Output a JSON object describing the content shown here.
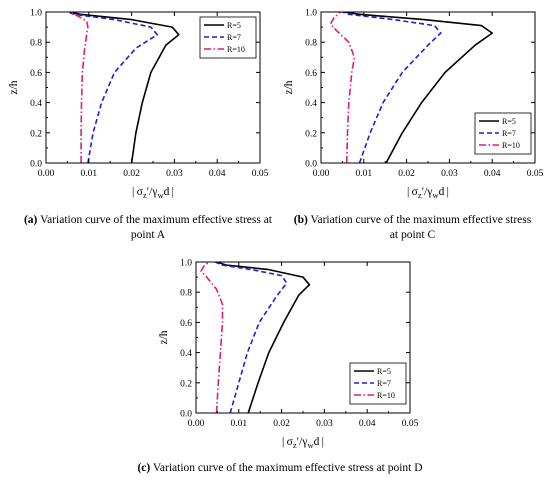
{
  "chart_data": [
    {
      "panel_tag": "(a)",
      "caption": "Variation curve of the maximum effective stress at point A",
      "type": "line",
      "ylabel": "z/h",
      "xlim": [
        0,
        0.05
      ],
      "ylim": [
        0,
        1.0
      ],
      "xticks": [
        "0.00",
        "0.01",
        "0.02",
        "0.03",
        "0.04",
        "0.05"
      ],
      "yticks": [
        "0.0",
        "0.2",
        "0.4",
        "0.6",
        "0.8",
        "1.0"
      ],
      "legend_position": "top-right",
      "series": [
        {
          "name": "R=5",
          "color": "#000000",
          "dash": "solid",
          "points": [
            [
              0.02,
              0.0
            ],
            [
              0.021,
              0.2
            ],
            [
              0.0225,
              0.4
            ],
            [
              0.0245,
              0.6
            ],
            [
              0.028,
              0.78
            ],
            [
              0.031,
              0.85
            ],
            [
              0.0295,
              0.9
            ],
            [
              0.02,
              0.95
            ],
            [
              0.008,
              0.985
            ],
            [
              0.0055,
              1.0
            ]
          ]
        },
        {
          "name": "R=7",
          "color": "#1f1fd6",
          "dash": "dashed",
          "points": [
            [
              0.0098,
              0.0
            ],
            [
              0.011,
              0.2
            ],
            [
              0.013,
              0.4
            ],
            [
              0.016,
              0.6
            ],
            [
              0.021,
              0.76
            ],
            [
              0.026,
              0.85
            ],
            [
              0.0245,
              0.9
            ],
            [
              0.016,
              0.95
            ],
            [
              0.0065,
              0.985
            ],
            [
              0.005,
              1.0
            ]
          ]
        },
        {
          "name": "R=10",
          "color": "#e01c7c",
          "dash": "dashdot",
          "points": [
            [
              0.0082,
              0.0
            ],
            [
              0.0082,
              0.2
            ],
            [
              0.0083,
              0.4
            ],
            [
              0.0085,
              0.6
            ],
            [
              0.009,
              0.75
            ],
            [
              0.0095,
              0.85
            ],
            [
              0.0098,
              0.9
            ],
            [
              0.0095,
              0.94
            ],
            [
              0.007,
              0.98
            ],
            [
              0.0055,
              1.0
            ]
          ]
        }
      ]
    },
    {
      "panel_tag": "(b)",
      "caption": "Variation curve of the maximum effective stress at point C",
      "type": "line",
      "ylabel": "z/h",
      "xlim": [
        0,
        0.05
      ],
      "ylim": [
        0,
        1.0
      ],
      "xticks": [
        "0.00",
        "0.01",
        "0.02",
        "0.03",
        "0.04",
        "0.05"
      ],
      "yticks": [
        "0.0",
        "0.2",
        "0.4",
        "0.6",
        "0.8",
        "1.0"
      ],
      "legend_position": "bottom-right",
      "series": [
        {
          "name": "R=5",
          "color": "#000000",
          "dash": "solid",
          "points": [
            [
              0.0152,
              0.0
            ],
            [
              0.019,
              0.2
            ],
            [
              0.0235,
              0.4
            ],
            [
              0.029,
              0.6
            ],
            [
              0.036,
              0.78
            ],
            [
              0.04,
              0.86
            ],
            [
              0.0375,
              0.91
            ],
            [
              0.024,
              0.95
            ],
            [
              0.009,
              0.985
            ],
            [
              0.0055,
              1.0
            ]
          ]
        },
        {
          "name": "R=7",
          "color": "#1f1fd6",
          "dash": "dashed",
          "points": [
            [
              0.009,
              0.0
            ],
            [
              0.0115,
              0.2
            ],
            [
              0.0145,
              0.4
            ],
            [
              0.019,
              0.6
            ],
            [
              0.025,
              0.78
            ],
            [
              0.028,
              0.86
            ],
            [
              0.0265,
              0.91
            ],
            [
              0.017,
              0.95
            ],
            [
              0.0065,
              0.985
            ],
            [
              0.005,
              1.0
            ]
          ]
        },
        {
          "name": "R=10",
          "color": "#e01c7c",
          "dash": "dashdot",
          "points": [
            [
              0.006,
              0.0
            ],
            [
              0.0062,
              0.2
            ],
            [
              0.0065,
              0.4
            ],
            [
              0.0072,
              0.6
            ],
            [
              0.0078,
              0.7
            ],
            [
              0.0065,
              0.8
            ],
            [
              0.0035,
              0.88
            ],
            [
              0.0022,
              0.92
            ],
            [
              0.003,
              0.96
            ],
            [
              0.0045,
              1.0
            ]
          ]
        }
      ]
    },
    {
      "panel_tag": "(c)",
      "caption": "Variation curve of the maximum effective stress at point D",
      "type": "line",
      "ylabel": "z/h",
      "xlim": [
        0,
        0.05
      ],
      "ylim": [
        0,
        1.0
      ],
      "xticks": [
        "0.00",
        "0.01",
        "0.02",
        "0.03",
        "0.04",
        "0.05"
      ],
      "yticks": [
        "0.0",
        "0.2",
        "0.4",
        "0.6",
        "0.8",
        "1.0"
      ],
      "legend_position": "bottom-right",
      "series": [
        {
          "name": "R=5",
          "color": "#000000",
          "dash": "solid",
          "points": [
            [
              0.0122,
              0.0
            ],
            [
              0.0145,
              0.2
            ],
            [
              0.017,
              0.4
            ],
            [
              0.0205,
              0.6
            ],
            [
              0.024,
              0.78
            ],
            [
              0.0265,
              0.85
            ],
            [
              0.025,
              0.9
            ],
            [
              0.017,
              0.95
            ],
            [
              0.007,
              0.98
            ],
            [
              0.0048,
              1.0
            ]
          ]
        },
        {
          "name": "R=7",
          "color": "#1f1fd6",
          "dash": "dashed",
          "points": [
            [
              0.008,
              0.0
            ],
            [
              0.01,
              0.2
            ],
            [
              0.012,
              0.4
            ],
            [
              0.0148,
              0.6
            ],
            [
              0.019,
              0.78
            ],
            [
              0.0212,
              0.86
            ],
            [
              0.02,
              0.91
            ],
            [
              0.013,
              0.95
            ],
            [
              0.006,
              0.98
            ],
            [
              0.0045,
              1.0
            ]
          ]
        },
        {
          "name": "R=10",
          "color": "#e01c7c",
          "dash": "dashdot",
          "points": [
            [
              0.0048,
              0.0
            ],
            [
              0.0052,
              0.2
            ],
            [
              0.0057,
              0.4
            ],
            [
              0.0062,
              0.6
            ],
            [
              0.0062,
              0.72
            ],
            [
              0.0048,
              0.82
            ],
            [
              0.0025,
              0.9
            ],
            [
              0.0012,
              0.94
            ],
            [
              0.0018,
              0.97
            ],
            [
              0.003,
              1.0
            ]
          ]
        }
      ]
    }
  ]
}
